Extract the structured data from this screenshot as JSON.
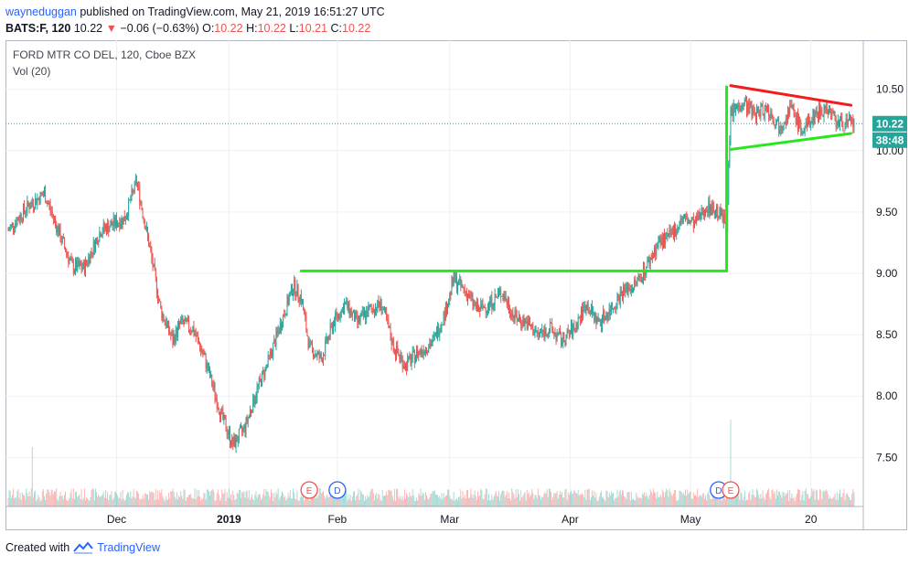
{
  "header": {
    "user": "wayneduggan",
    "published_text": "published on TradingView.com, May 21, 2019 16:51:27 UTC",
    "symbol": "BATS:F, 120",
    "last": "10.22",
    "change": "−0.06 (−0.63%)",
    "o_label": "O:",
    "o": "10.22",
    "h_label": "H:",
    "h": "10.22",
    "l_label": "L:",
    "l": "10.21",
    "c_label": "C:",
    "c": "10.22"
  },
  "legend": {
    "title": "FORD MTR CO DEL, 120, Cboe BZX",
    "volume": "Vol (20)"
  },
  "price_tag": "10.22",
  "countdown_tag": "38:48",
  "footer": {
    "created": "Created with",
    "brand": "TradingView"
  },
  "colors": {
    "up": "#26a69a",
    "down": "#ef5350",
    "trend_green": "#29e51d",
    "trend_red": "#f41b1b",
    "tag": "#26a69a",
    "grid": "#eef0f3"
  },
  "chart_data": {
    "type": "candlestick",
    "ylim": [
      7.1,
      10.9
    ],
    "y_ticks": [
      "10.50",
      "10.00",
      "9.50",
      "9.00",
      "8.50",
      "8.00",
      "7.50"
    ],
    "x_tick_labels": [
      "Dec",
      "2019",
      "Feb",
      "Mar",
      "Apr",
      "May",
      "20"
    ],
    "events": [
      {
        "letter": "E",
        "kind": "earnings"
      },
      {
        "letter": "D",
        "kind": "dividend"
      },
      {
        "letter": "D",
        "kind": "dividend"
      },
      {
        "letter": "E",
        "kind": "earnings"
      }
    ],
    "price_path": [
      [
        0,
        9.35
      ],
      [
        5,
        9.55
      ],
      [
        9,
        9.65
      ],
      [
        13,
        9.3
      ],
      [
        16,
        9.05
      ],
      [
        19,
        9.05
      ],
      [
        23,
        9.35
      ],
      [
        26,
        9.4
      ],
      [
        29,
        9.45
      ],
      [
        32,
        9.75
      ],
      [
        35,
        9.25
      ],
      [
        38,
        8.7
      ],
      [
        41,
        8.45
      ],
      [
        43,
        8.6
      ],
      [
        46,
        8.55
      ],
      [
        49,
        8.3
      ],
      [
        53,
        7.85
      ],
      [
        56,
        7.6
      ],
      [
        59,
        7.75
      ],
      [
        62,
        8.05
      ],
      [
        65,
        8.3
      ],
      [
        68,
        8.6
      ],
      [
        71,
        8.9
      ],
      [
        73,
        8.8
      ],
      [
        75,
        8.4
      ],
      [
        78,
        8.3
      ],
      [
        81,
        8.6
      ],
      [
        84,
        8.75
      ],
      [
        87,
        8.6
      ],
      [
        90,
        8.7
      ],
      [
        93,
        8.75
      ],
      [
        96,
        8.4
      ],
      [
        99,
        8.25
      ],
      [
        102,
        8.35
      ],
      [
        106,
        8.45
      ],
      [
        109,
        8.7
      ],
      [
        111,
        8.95
      ],
      [
        114,
        8.85
      ],
      [
        117,
        8.7
      ],
      [
        120,
        8.75
      ],
      [
        123,
        8.85
      ],
      [
        126,
        8.65
      ],
      [
        129,
        8.6
      ],
      [
        132,
        8.5
      ],
      [
        135,
        8.55
      ],
      [
        138,
        8.45
      ],
      [
        141,
        8.55
      ],
      [
        144,
        8.75
      ],
      [
        147,
        8.6
      ],
      [
        150,
        8.7
      ],
      [
        153,
        8.85
      ],
      [
        156,
        8.9
      ],
      [
        159,
        9.05
      ],
      [
        162,
        9.25
      ],
      [
        165,
        9.3
      ],
      [
        168,
        9.45
      ],
      [
        171,
        9.4
      ],
      [
        174,
        9.55
      ],
      [
        177,
        9.5
      ],
      [
        179,
        9.4
      ],
      [
        180,
        10.3
      ],
      [
        183,
        10.4
      ],
      [
        186,
        10.3
      ],
      [
        189,
        10.35
      ],
      [
        192,
        10.2
      ],
      [
        195,
        10.35
      ],
      [
        198,
        10.15
      ],
      [
        201,
        10.3
      ],
      [
        204,
        10.35
      ],
      [
        207,
        10.22
      ]
    ],
    "volume_spikes": [
      {
        "t": 6,
        "v": 0.5
      },
      {
        "t": 180,
        "v": 0.73
      }
    ],
    "trendlines": [
      {
        "name": "resistance",
        "color": "green",
        "points": [
          [
            73,
            9.02
          ],
          [
            179,
            9.02
          ]
        ]
      },
      {
        "name": "breakout",
        "color": "green",
        "points": [
          [
            179,
            9.02
          ],
          [
            179,
            10.52
          ]
        ]
      },
      {
        "name": "pennant-top",
        "color": "red",
        "points": [
          [
            180,
            10.53
          ],
          [
            210,
            10.37
          ]
        ]
      },
      {
        "name": "pennant-bottom",
        "color": "green",
        "points": [
          [
            180,
            10.01
          ],
          [
            210,
            10.14
          ]
        ]
      }
    ],
    "current_price": 10.22
  }
}
